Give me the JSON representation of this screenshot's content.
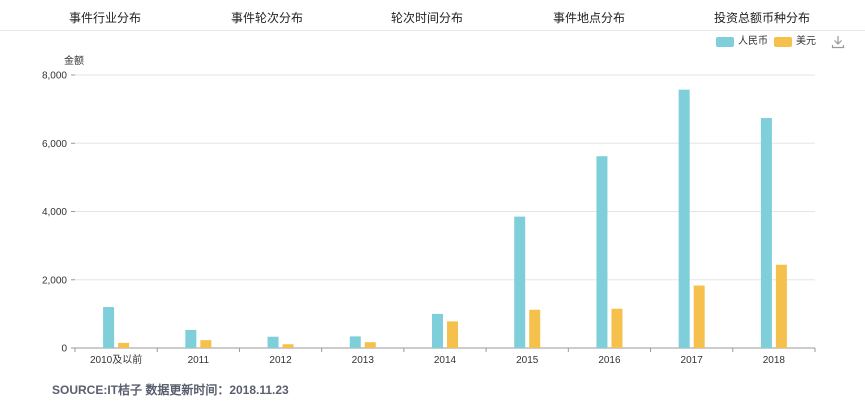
{
  "tabs": [
    "事件行业分布",
    "事件轮次分布",
    "轮次时间分布",
    "事件地点分布",
    "投资总额币种分布"
  ],
  "download_icon": "download-icon",
  "unit_label": "金额",
  "footer": "SOURCE:IT桔子 数据更新时间：2018.11.23",
  "colors": {
    "rmb": "#7ecfd9",
    "usd": "#f5c04c",
    "grid": "#e5e5e5",
    "axis": "#999999"
  },
  "chart_data": {
    "type": "bar",
    "categories": [
      "2010及以前",
      "2011",
      "2012",
      "2013",
      "2014",
      "2015",
      "2016",
      "2017",
      "2018"
    ],
    "series": [
      {
        "name": "人民币",
        "values": [
          1200,
          530,
          330,
          340,
          1000,
          3850,
          5620,
          7570,
          6740
        ]
      },
      {
        "name": "美元",
        "values": [
          150,
          230,
          110,
          170,
          780,
          1120,
          1150,
          1830,
          2440
        ]
      }
    ],
    "yticks": [
      0,
      2000,
      4000,
      6000,
      8000
    ],
    "ytick_labels": [
      "0",
      "2,000",
      "4,000",
      "6,000",
      "8,000"
    ],
    "ylim": [
      0,
      8000
    ],
    "ylabel": "金额",
    "grid": true,
    "legend_position": "top-right"
  }
}
